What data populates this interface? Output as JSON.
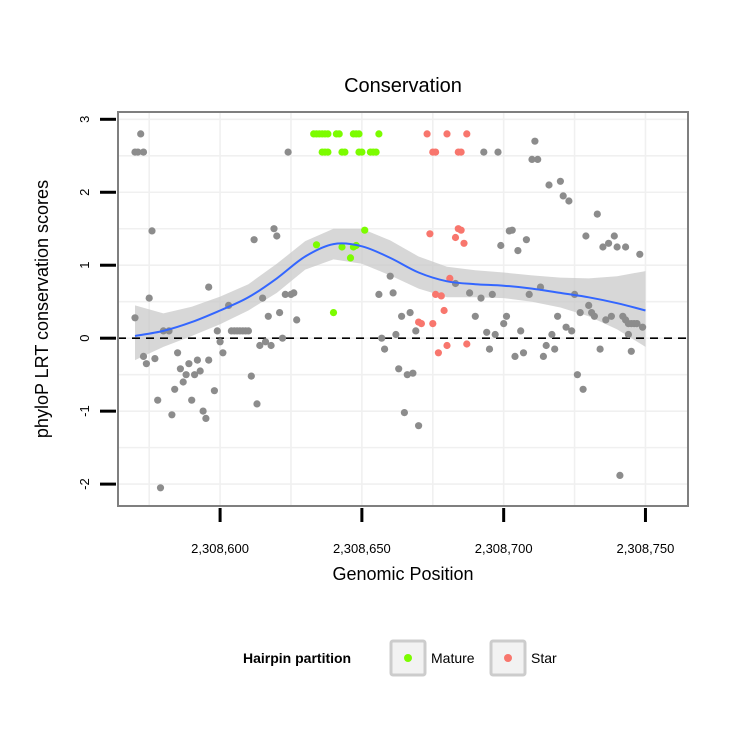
{
  "colors": {
    "mature": "#7cfc00",
    "star": "#f8766d",
    "other": "#8c8c8c",
    "smooth_line": "#3366ff",
    "ribbon": "#c9c9c9",
    "grid": "#f0f0f0",
    "panel_border": "#7f7f7f"
  },
  "legend": {
    "title": "Hairpin partition",
    "items": [
      {
        "key": "mature",
        "label": "Mature"
      },
      {
        "key": "star",
        "label": "Star"
      }
    ]
  },
  "chart_data": {
    "type": "scatter",
    "title": "Conservation",
    "xlabel": "Genomic Position",
    "ylabel": "phyloP LRT conservation scores",
    "xlim": [
      2308564,
      2308765
    ],
    "ylim": [
      -2.3,
      3.1
    ],
    "x_ticks": [
      2308600,
      2308650,
      2308700,
      2308750
    ],
    "x_tick_labels": [
      "2,308,600",
      "2,308,650",
      "2,308,700",
      "2,308,750"
    ],
    "y_ticks": [
      -2,
      -1,
      0,
      1,
      2,
      3
    ],
    "y_tick_labels": [
      "-2",
      "-1",
      "0",
      "1",
      "2",
      "3"
    ],
    "reference_line": {
      "y": 0,
      "style": "dashed"
    },
    "grid": true,
    "legend_position": "bottom",
    "series": [
      {
        "key": "other",
        "points": [
          [
            2308570,
            2.55
          ],
          [
            2308571,
            2.55
          ],
          [
            2308572,
            2.8
          ],
          [
            2308573,
            2.55
          ],
          [
            2308570,
            0.28
          ],
          [
            2308573,
            -0.25
          ],
          [
            2308574,
            -0.35
          ],
          [
            2308575,
            0.55
          ],
          [
            2308576,
            1.47
          ],
          [
            2308577,
            -0.28
          ],
          [
            2308578,
            -0.85
          ],
          [
            2308579,
            -2.05
          ],
          [
            2308580,
            0.1
          ],
          [
            2308582,
            0.1
          ],
          [
            2308583,
            -1.05
          ],
          [
            2308584,
            -0.7
          ],
          [
            2308585,
            -0.2
          ],
          [
            2308586,
            -0.42
          ],
          [
            2308587,
            -0.6
          ],
          [
            2308588,
            -0.5
          ],
          [
            2308589,
            -0.35
          ],
          [
            2308590,
            -0.85
          ],
          [
            2308591,
            -0.5
          ],
          [
            2308592,
            -0.3
          ],
          [
            2308593,
            -0.45
          ],
          [
            2308594,
            -1.0
          ],
          [
            2308595,
            -1.1
          ],
          [
            2308596,
            0.7
          ],
          [
            2308596,
            -0.3
          ],
          [
            2308598,
            -0.72
          ],
          [
            2308599,
            0.1
          ],
          [
            2308600,
            -0.05
          ],
          [
            2308601,
            -0.2
          ],
          [
            2308603,
            0.45
          ],
          [
            2308604,
            0.1
          ],
          [
            2308605,
            0.1
          ],
          [
            2308606,
            0.1
          ],
          [
            2308607,
            0.1
          ],
          [
            2308608,
            0.1
          ],
          [
            2308609,
            0.1
          ],
          [
            2308610,
            0.1
          ],
          [
            2308611,
            -0.52
          ],
          [
            2308612,
            1.35
          ],
          [
            2308613,
            -0.9
          ],
          [
            2308614,
            -0.1
          ],
          [
            2308615,
            0.55
          ],
          [
            2308616,
            -0.05
          ],
          [
            2308617,
            0.3
          ],
          [
            2308618,
            -0.1
          ],
          [
            2308619,
            1.5
          ],
          [
            2308620,
            1.4
          ],
          [
            2308621,
            0.35
          ],
          [
            2308622,
            0.0
          ],
          [
            2308623,
            0.6
          ],
          [
            2308624,
            2.55
          ],
          [
            2308625,
            0.6
          ],
          [
            2308626,
            0.62
          ],
          [
            2308627,
            0.25
          ],
          [
            2308656,
            0.6
          ],
          [
            2308657,
            0.0
          ],
          [
            2308658,
            -0.15
          ],
          [
            2308660,
            0.85
          ],
          [
            2308661,
            0.62
          ],
          [
            2308662,
            0.05
          ],
          [
            2308663,
            -0.42
          ],
          [
            2308664,
            0.3
          ],
          [
            2308665,
            -1.02
          ],
          [
            2308666,
            -0.5
          ],
          [
            2308667,
            0.35
          ],
          [
            2308668,
            -0.48
          ],
          [
            2308669,
            0.1
          ],
          [
            2308670,
            -1.2
          ],
          [
            2308683,
            0.75
          ],
          [
            2308688,
            0.62
          ],
          [
            2308690,
            0.3
          ],
          [
            2308692,
            0.55
          ],
          [
            2308693,
            2.55
          ],
          [
            2308694,
            0.08
          ],
          [
            2308695,
            -0.15
          ],
          [
            2308696,
            0.6
          ],
          [
            2308697,
            0.05
          ],
          [
            2308698,
            2.55
          ],
          [
            2308699,
            1.27
          ],
          [
            2308700,
            0.2
          ],
          [
            2308701,
            0.3
          ],
          [
            2308702,
            1.47
          ],
          [
            2308703,
            1.48
          ],
          [
            2308704,
            -0.25
          ],
          [
            2308705,
            1.2
          ],
          [
            2308706,
            0.1
          ],
          [
            2308707,
            -0.2
          ],
          [
            2308708,
            1.35
          ],
          [
            2308709,
            0.6
          ],
          [
            2308710,
            2.45
          ],
          [
            2308711,
            2.7
          ],
          [
            2308712,
            2.45
          ],
          [
            2308713,
            0.7
          ],
          [
            2308714,
            -0.25
          ],
          [
            2308715,
            -0.1
          ],
          [
            2308716,
            2.1
          ],
          [
            2308717,
            0.05
          ],
          [
            2308718,
            -0.15
          ],
          [
            2308719,
            0.3
          ],
          [
            2308720,
            2.15
          ],
          [
            2308721,
            1.95
          ],
          [
            2308722,
            0.15
          ],
          [
            2308723,
            1.88
          ],
          [
            2308724,
            0.1
          ],
          [
            2308725,
            0.6
          ],
          [
            2308726,
            -0.5
          ],
          [
            2308727,
            0.35
          ],
          [
            2308728,
            -0.7
          ],
          [
            2308729,
            1.4
          ],
          [
            2308730,
            0.45
          ],
          [
            2308731,
            0.35
          ],
          [
            2308732,
            0.3
          ],
          [
            2308733,
            1.7
          ],
          [
            2308734,
            -0.15
          ],
          [
            2308735,
            1.25
          ],
          [
            2308736,
            0.25
          ],
          [
            2308737,
            1.3
          ],
          [
            2308738,
            0.3
          ],
          [
            2308739,
            1.4
          ],
          [
            2308740,
            1.25
          ],
          [
            2308741,
            -1.88
          ],
          [
            2308742,
            0.3
          ],
          [
            2308743,
            1.25
          ],
          [
            2308744,
            0.2
          ],
          [
            2308745,
            -0.18
          ],
          [
            2308746,
            0.2
          ],
          [
            2308747,
            0.2
          ],
          [
            2308748,
            1.15
          ],
          [
            2308749,
            0.15
          ],
          [
            2308743,
            0.25
          ],
          [
            2308745,
            0.2
          ],
          [
            2308744,
            0.05
          ]
        ]
      },
      {
        "key": "mature",
        "points": [
          [
            2308633,
            2.8
          ],
          [
            2308634,
            2.8
          ],
          [
            2308635,
            2.8
          ],
          [
            2308636,
            2.8
          ],
          [
            2308637,
            2.8
          ],
          [
            2308638,
            2.8
          ],
          [
            2308636,
            2.55
          ],
          [
            2308637,
            2.55
          ],
          [
            2308638,
            2.55
          ],
          [
            2308641,
            2.8
          ],
          [
            2308642,
            2.8
          ],
          [
            2308643,
            2.55
          ],
          [
            2308644,
            2.55
          ],
          [
            2308647,
            2.8
          ],
          [
            2308648,
            2.8
          ],
          [
            2308649,
            2.8
          ],
          [
            2308649,
            2.55
          ],
          [
            2308650,
            2.55
          ],
          [
            2308653,
            2.55
          ],
          [
            2308654,
            2.55
          ],
          [
            2308655,
            2.55
          ],
          [
            2308656,
            2.8
          ],
          [
            2308634,
            1.28
          ],
          [
            2308640,
            0.35
          ],
          [
            2308643,
            1.25
          ],
          [
            2308646,
            1.1
          ],
          [
            2308647,
            1.25
          ],
          [
            2308648,
            1.27
          ],
          [
            2308651,
            1.48
          ]
        ]
      },
      {
        "key": "star",
        "points": [
          [
            2308673,
            2.8
          ],
          [
            2308675,
            2.55
          ],
          [
            2308676,
            2.55
          ],
          [
            2308680,
            2.8
          ],
          [
            2308684,
            2.55
          ],
          [
            2308685,
            2.55
          ],
          [
            2308687,
            2.8
          ],
          [
            2308670,
            0.22
          ],
          [
            2308671,
            0.2
          ],
          [
            2308674,
            1.43
          ],
          [
            2308675,
            0.2
          ],
          [
            2308676,
            0.6
          ],
          [
            2308677,
            -0.2
          ],
          [
            2308678,
            0.58
          ],
          [
            2308679,
            0.38
          ],
          [
            2308680,
            -0.1
          ],
          [
            2308681,
            0.82
          ],
          [
            2308683,
            1.38
          ],
          [
            2308684,
            1.5
          ],
          [
            2308685,
            1.48
          ],
          [
            2308686,
            1.3
          ],
          [
            2308687,
            -0.08
          ]
        ]
      }
    ],
    "smooth": [
      [
        2308570,
        0.03
      ],
      [
        2308580,
        0.1
      ],
      [
        2308590,
        0.22
      ],
      [
        2308600,
        0.38
      ],
      [
        2308610,
        0.56
      ],
      [
        2308620,
        0.82
      ],
      [
        2308630,
        1.12
      ],
      [
        2308640,
        1.29
      ],
      [
        2308650,
        1.26
      ],
      [
        2308660,
        1.1
      ],
      [
        2308670,
        0.9
      ],
      [
        2308680,
        0.78
      ],
      [
        2308690,
        0.74
      ],
      [
        2308700,
        0.72
      ],
      [
        2308710,
        0.68
      ],
      [
        2308720,
        0.62
      ],
      [
        2308730,
        0.56
      ],
      [
        2308740,
        0.48
      ],
      [
        2308750,
        0.38
      ]
    ],
    "smooth_band": [
      [
        2308570,
        -0.3,
        0.45
      ],
      [
        2308580,
        -0.12,
        0.34
      ],
      [
        2308590,
        0.03,
        0.43
      ],
      [
        2308600,
        0.19,
        0.57
      ],
      [
        2308610,
        0.38,
        0.74
      ],
      [
        2308620,
        0.62,
        1.02
      ],
      [
        2308630,
        0.94,
        1.33
      ],
      [
        2308640,
        1.08,
        1.5
      ],
      [
        2308650,
        1.02,
        1.5
      ],
      [
        2308660,
        0.86,
        1.34
      ],
      [
        2308670,
        0.68,
        1.12
      ],
      [
        2308680,
        0.56,
        0.98
      ],
      [
        2308690,
        0.56,
        0.93
      ],
      [
        2308700,
        0.55,
        0.9
      ],
      [
        2308710,
        0.5,
        0.86
      ],
      [
        2308720,
        0.42,
        0.83
      ],
      [
        2308730,
        0.3,
        0.82
      ],
      [
        2308740,
        0.12,
        0.85
      ],
      [
        2308750,
        -0.12,
        0.92
      ]
    ]
  }
}
